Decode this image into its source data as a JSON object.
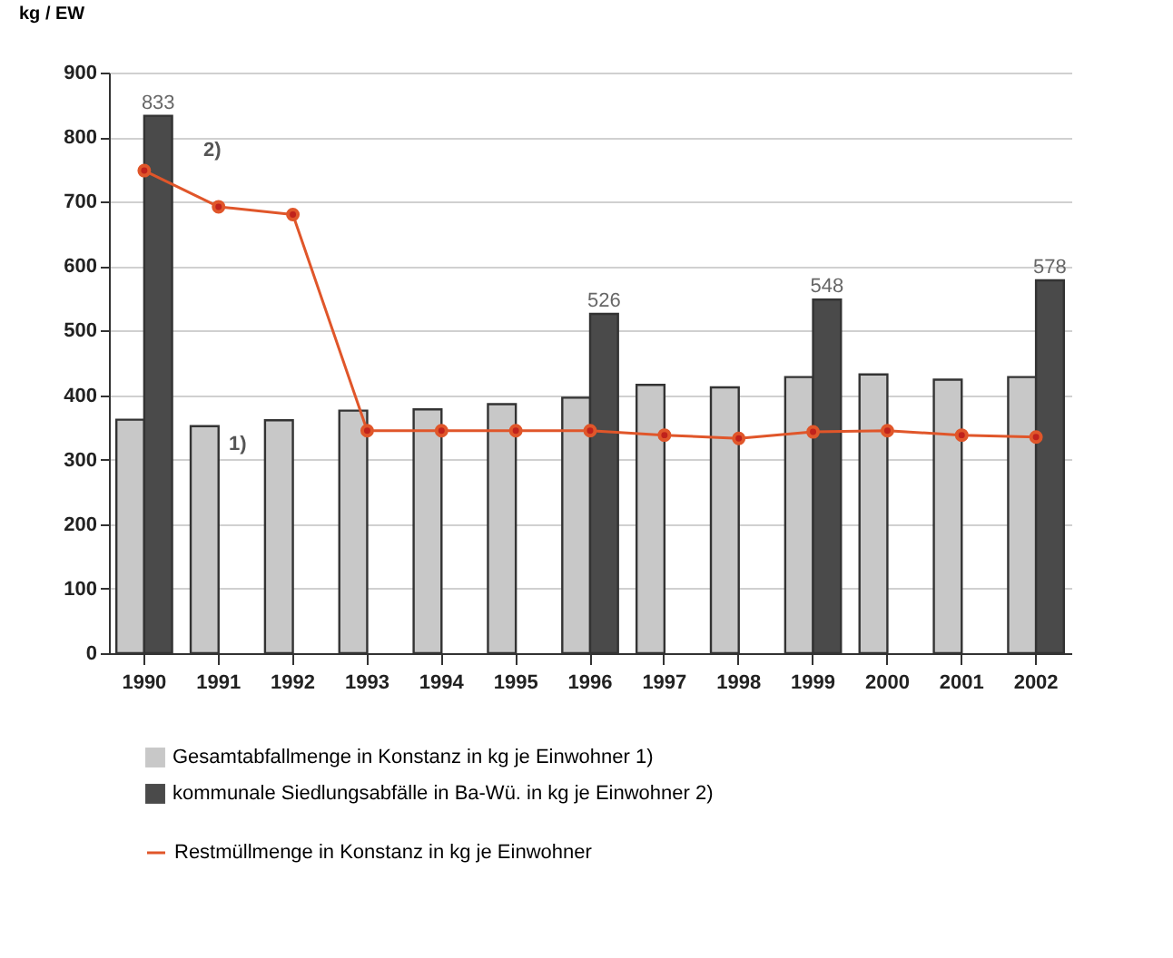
{
  "chart_data": {
    "type": "bar",
    "ylabel": "kg / EW",
    "categories": [
      "1990",
      "1991",
      "1992",
      "1993",
      "1994",
      "1995",
      "1996",
      "1997",
      "1998",
      "1999",
      "2000",
      "2001",
      "2002"
    ],
    "series": [
      {
        "name": "Gesamtabfallmenge in Konstanz in kg je Einwohner 1)",
        "color": "#c8c8c8",
        "values": [
          362,
          352,
          361,
          376,
          378,
          386,
          396,
          416,
          412,
          428,
          432,
          424,
          428
        ]
      },
      {
        "name": "kommunale Siedlungsabfälle in Ba-Wü. in kg je Einwohner 2)",
        "color": "#4a4a4a",
        "values": [
          833,
          null,
          null,
          null,
          null,
          null,
          526,
          null,
          null,
          548,
          null,
          null,
          578
        ],
        "value_labels": [
          "833",
          null,
          null,
          null,
          null,
          null,
          "526",
          null,
          null,
          "548",
          null,
          null,
          "578"
        ]
      },
      {
        "name": "Restmüllmenge in Konstanz in kg je Einwohner",
        "type": "line",
        "color": "#e0562a",
        "marker": "circle",
        "values": [
          748,
          692,
          680,
          345,
          345,
          345,
          345,
          338,
          333,
          343,
          345,
          338,
          335
        ]
      }
    ],
    "ylim": [
      0,
      900
    ],
    "yticks": [
      0,
      100,
      200,
      300,
      400,
      500,
      600,
      700,
      800,
      900
    ],
    "grid": "y",
    "legend": "bottom",
    "annotations": [
      "2)",
      "1)"
    ]
  }
}
